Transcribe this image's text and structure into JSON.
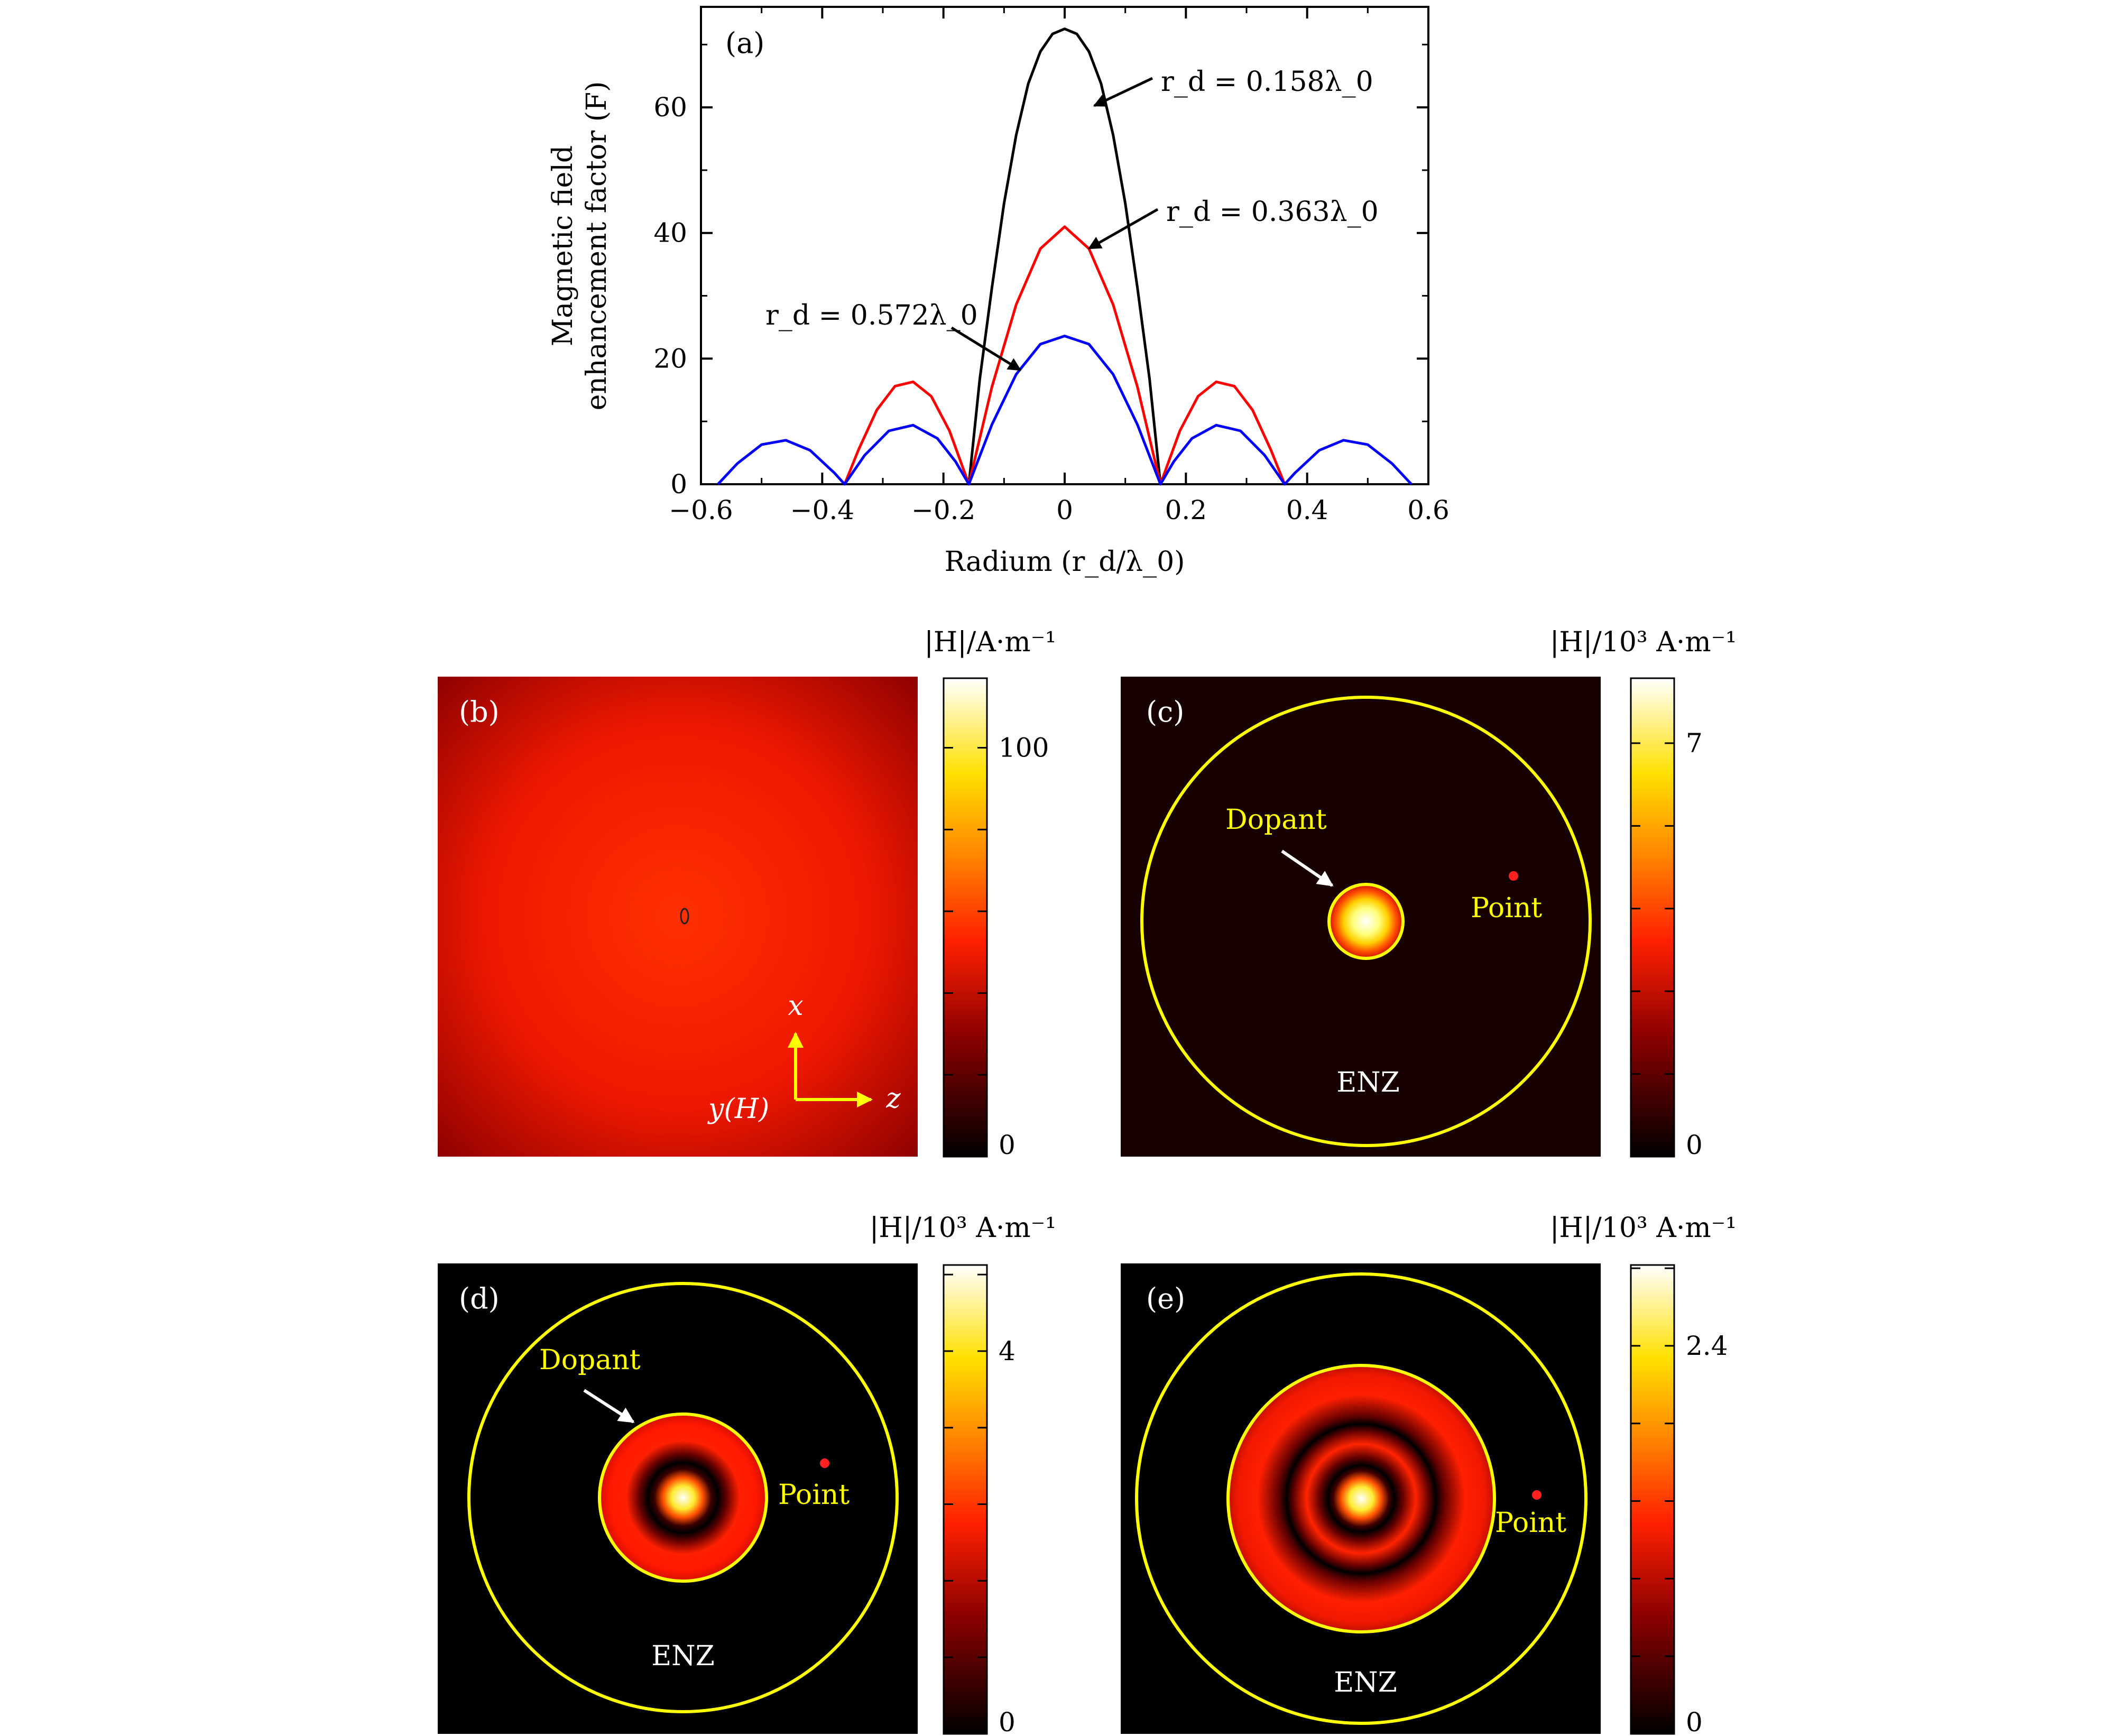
{
  "chart_data": [
    {
      "panel": "(a)",
      "type": "line",
      "xlabel": "Radium (r_d/λ_0)",
      "ylabel_lines": [
        "Magnetic field",
        "enhancement factor (F)"
      ],
      "xlim": [
        -0.6,
        0.6
      ],
      "ylim": [
        0,
        76
      ],
      "xticks": [
        -0.6,
        -0.4,
        -0.2,
        0,
        0.2,
        0.4,
        0.6
      ],
      "xtick_labels": [
        "−0.6",
        "−0.4",
        "−0.2",
        "0",
        "0.2",
        "0.4",
        "0.6"
      ],
      "yticks": [
        0,
        20,
        40,
        60
      ],
      "ytick_labels": [
        "0",
        "20",
        "40",
        "60"
      ],
      "grid": false,
      "series": [
        {
          "color": "#000000",
          "x": [
            -0.158,
            -0.14,
            -0.12,
            -0.1,
            -0.08,
            -0.06,
            -0.04,
            -0.02,
            0,
            0.02,
            0.04,
            0.06,
            0.08,
            0.1,
            0.12,
            0.14,
            0.158
          ],
          "y": [
            0,
            16.8,
            31.3,
            44.7,
            55.6,
            63.8,
            68.9,
            71.7,
            72.5,
            71.7,
            68.9,
            63.8,
            55.6,
            44.7,
            31.3,
            16.8,
            0
          ]
        },
        {
          "color": "#ff0000",
          "x": [
            -0.363,
            -0.34,
            -0.31,
            -0.28,
            -0.25,
            -0.22,
            -0.19,
            -0.158,
            -0.12,
            -0.08,
            -0.04,
            0,
            0.04,
            0.08,
            0.12,
            0.158,
            0.19,
            0.22,
            0.25,
            0.28,
            0.31,
            0.34,
            0.363
          ],
          "y": [
            0,
            5.5,
            11.8,
            15.6,
            16.3,
            14.0,
            8.5,
            0,
            15.5,
            28.6,
            37.5,
            41.0,
            37.5,
            28.6,
            15.5,
            0,
            8.5,
            14.0,
            16.3,
            15.6,
            11.8,
            5.5,
            0
          ]
        },
        {
          "color": "#0000ff",
          "x": [
            -0.572,
            -0.54,
            -0.5,
            -0.46,
            -0.42,
            -0.38,
            -0.363,
            -0.33,
            -0.29,
            -0.25,
            -0.21,
            -0.18,
            -0.158,
            -0.12,
            -0.08,
            -0.04,
            0,
            0.04,
            0.08,
            0.12,
            0.158,
            0.18,
            0.21,
            0.25,
            0.29,
            0.33,
            0.363,
            0.38,
            0.42,
            0.46,
            0.5,
            0.54,
            0.572
          ],
          "y": [
            0,
            3.3,
            6.3,
            7.0,
            5.4,
            1.8,
            0,
            4.6,
            8.5,
            9.4,
            7.3,
            3.6,
            0,
            9.5,
            17.5,
            22.3,
            23.6,
            22.3,
            17.5,
            9.5,
            0,
            3.6,
            7.3,
            9.4,
            8.5,
            4.6,
            0,
            1.8,
            5.4,
            7.0,
            6.3,
            3.3,
            0
          ]
        }
      ],
      "annotations": [
        {
          "text": "r_d = 0.158λ_0"
        },
        {
          "text": "r_d = 0.363λ_0"
        },
        {
          "text": "r_d = 0.572λ_0"
        }
      ]
    },
    {
      "panel": "(b)",
      "type": "heatmap",
      "colorbar_title": "|H|/A·m⁻¹",
      "colorbar_ticks": [
        0,
        100
      ],
      "colorbar_tick_labels": [
        "0",
        "100"
      ],
      "colorbar_max": 117,
      "field_level": 0.42,
      "axis_labels": {
        "x": "x",
        "z": "z",
        "y": "y(H)"
      }
    },
    {
      "panel": "(c)",
      "type": "heatmap",
      "colorbar_title": "|H|/10³ A·m⁻¹",
      "colorbar_ticks": [
        0,
        7
      ],
      "colorbar_tick_labels": [
        "0",
        "7"
      ],
      "colorbar_max": 8.1,
      "rings": 0,
      "labels": {
        "dopant": "Dopant",
        "point": "Point",
        "enz": "ENZ"
      }
    },
    {
      "panel": "(d)",
      "type": "heatmap",
      "colorbar_title": "|H|/10³ A·m⁻¹",
      "colorbar_ticks": [
        0,
        4
      ],
      "colorbar_tick_labels": [
        "0",
        "4"
      ],
      "colorbar_max": 4.9,
      "rings": 1,
      "labels": {
        "dopant": "Dopant",
        "point": "Point",
        "enz": "ENZ"
      }
    },
    {
      "panel": "(e)",
      "type": "heatmap",
      "colorbar_title": "|H|/10³ A·m⁻¹",
      "colorbar_ticks": [
        0,
        2.4
      ],
      "colorbar_tick_labels": [
        "0",
        "2.4"
      ],
      "colorbar_max": 2.9,
      "rings": 2,
      "labels": {
        "point": "Point",
        "enz": "ENZ"
      }
    }
  ]
}
